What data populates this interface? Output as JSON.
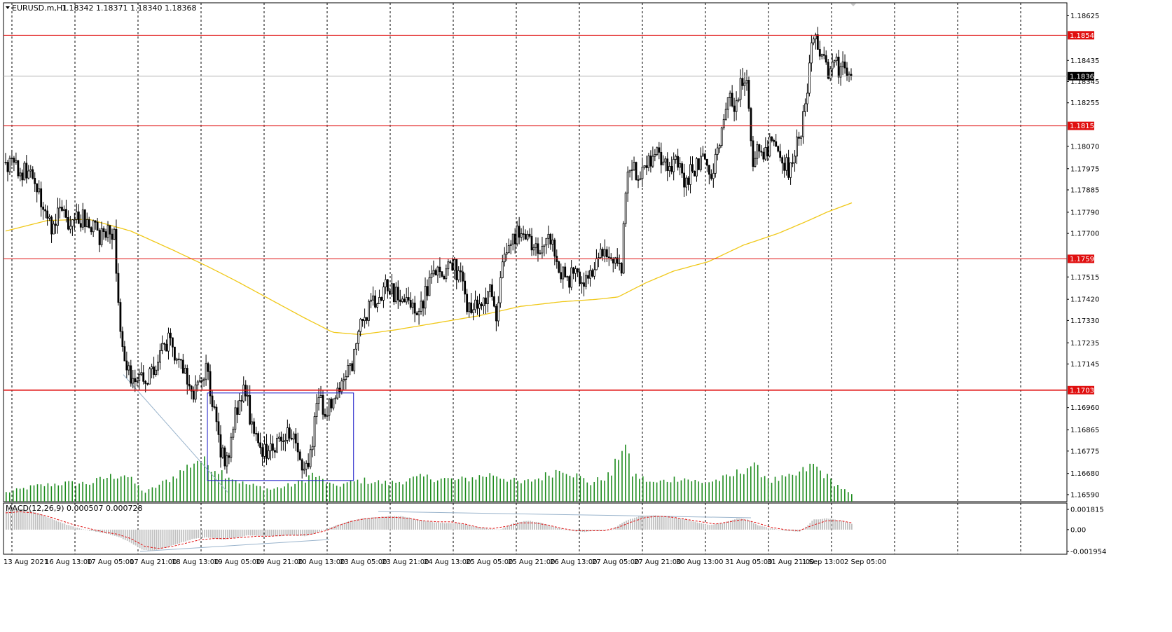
{
  "window": {
    "title": "EURUSD.m,H1",
    "ohlc": "1.18342 1.18371 1.18340 1.18368"
  },
  "indicators": {
    "macd_label": "MACD(12,26,9) 0.000507 0.000728"
  },
  "colors": {
    "background": "#ffffff",
    "candle": "#000000",
    "volume": "#1e8c1e",
    "ma": "#f0c818",
    "level": "#e01010",
    "box": "#2020c8",
    "grid": "#000000",
    "macd_hist": "#c0c0c0",
    "macd_signal": "#e01010",
    "trendline": "#9ab4cc"
  },
  "chart_data": [
    {
      "type": "candlestick",
      "title": "EURUSD.m,H1",
      "symbol": "EURUSD.m",
      "timeframe": "H1",
      "price_axis_ticks": [
        "1.18625",
        "1.18435",
        "1.18345",
        "1.18255",
        "1.18070",
        "1.17975",
        "1.17885",
        "1.17790",
        "1.17700",
        "1.17515",
        "1.17420",
        "1.17330",
        "1.17235",
        "1.17145",
        "1.16960",
        "1.16865",
        "1.16775",
        "1.16680",
        "1.16590"
      ],
      "price_axis_ticks_values": [
        1.18625,
        1.18435,
        1.18345,
        1.18255,
        1.1807,
        1.17975,
        1.17885,
        1.1779,
        1.177,
        1.17515,
        1.1742,
        1.1733,
        1.17235,
        1.17145,
        1.1696,
        1.16865,
        1.16775,
        1.1668,
        1.1659
      ],
      "time_axis_ticks": [
        "13 Aug 2021",
        "16 Aug 13:00",
        "17 Aug 05:00",
        "17 Aug 21:00",
        "18 Aug 13:00",
        "19 Aug 05:00",
        "19 Aug 21:00",
        "20 Aug 13:00",
        "23 Aug 05:00",
        "23 Aug 21:00",
        "24 Aug 13:00",
        "25 Aug 05:00",
        "25 Aug 21:00",
        "26 Aug 13:00",
        "27 Aug 05:00",
        "27 Aug 21:00",
        "30 Aug 13:00",
        "31 Aug 05:00",
        "31 Aug 21:00",
        "1 Sep 13:00",
        "2 Sep 05:00"
      ],
      "ylim": [
        1.1656,
        1.1868
      ],
      "horizontal_levels": [
        {
          "label": "1.18542",
          "value": 1.18542
        },
        {
          "label": "1.18157",
          "value": 1.18157
        },
        {
          "label": "1.17592",
          "value": 1.17592
        },
        {
          "label": "1.17034",
          "value": 1.17034
        }
      ],
      "current_price": {
        "label": "1.18368",
        "value": 1.18368
      },
      "price_path": [
        [
          0,
          1.18
        ],
        [
          15,
          1.1798
        ],
        [
          35,
          1.1795
        ],
        [
          50,
          1.1785
        ],
        [
          58,
          1.1777
        ],
        [
          68,
          1.1773
        ],
        [
          75,
          1.178
        ],
        [
          90,
          1.1776
        ],
        [
          110,
          1.1777
        ],
        [
          122,
          1.1774
        ],
        [
          136,
          1.1768
        ],
        [
          148,
          1.1775
        ],
        [
          156,
          1.1769
        ],
        [
          162,
          1.1742
        ],
        [
          168,
          1.1722
        ],
        [
          172,
          1.1712
        ],
        [
          185,
          1.1708
        ],
        [
          200,
          1.1706
        ],
        [
          212,
          1.1712
        ],
        [
          222,
          1.1718
        ],
        [
          235,
          1.1724
        ],
        [
          245,
          1.1718
        ],
        [
          258,
          1.1714
        ],
        [
          268,
          1.1698
        ],
        [
          276,
          1.1706
        ],
        [
          288,
          1.1712
        ],
        [
          296,
          1.1702
        ],
        [
          302,
          1.1688
        ],
        [
          310,
          1.1678
        ],
        [
          318,
          1.1672
        ],
        [
          326,
          1.1686
        ],
        [
          334,
          1.1698
        ],
        [
          342,
          1.1702
        ],
        [
          350,
          1.1695
        ],
        [
          358,
          1.1682
        ],
        [
          368,
          1.1676
        ],
        [
          378,
          1.1678
        ],
        [
          390,
          1.1682
        ],
        [
          400,
          1.1686
        ],
        [
          410,
          1.1684
        ],
        [
          418,
          1.1678
        ],
        [
          428,
          1.1672
        ],
        [
          435,
          1.167
        ],
        [
          442,
          1.1686
        ],
        [
          450,
          1.17
        ],
        [
          460,
          1.1696
        ],
        [
          470,
          1.1697
        ],
        [
          480,
          1.1705
        ],
        [
          490,
          1.1713
        ],
        [
          500,
          1.1716
        ],
        [
          510,
          1.173
        ],
        [
          520,
          1.1737
        ],
        [
          535,
          1.1745
        ],
        [
          550,
          1.1748
        ],
        [
          565,
          1.1742
        ],
        [
          580,
          1.1741
        ],
        [
          595,
          1.1737
        ],
        [
          605,
          1.1745
        ],
        [
          615,
          1.1755
        ],
        [
          625,
          1.1752
        ],
        [
          640,
          1.1757
        ],
        [
          650,
          1.1754
        ],
        [
          660,
          1.1742
        ],
        [
          672,
          1.1737
        ],
        [
          684,
          1.174
        ],
        [
          695,
          1.1745
        ],
        [
          705,
          1.1737
        ],
        [
          715,
          1.1758
        ],
        [
          728,
          1.177
        ],
        [
          740,
          1.177
        ],
        [
          752,
          1.1765
        ],
        [
          765,
          1.1762
        ],
        [
          778,
          1.177
        ],
        [
          788,
          1.1762
        ],
        [
          798,
          1.1753
        ],
        [
          810,
          1.1751
        ],
        [
          822,
          1.1752
        ],
        [
          836,
          1.1748
        ],
        [
          850,
          1.1758
        ],
        [
          860,
          1.1762
        ],
        [
          870,
          1.176
        ],
        [
          880,
          1.1753
        ],
        [
          886,
          1.1755
        ],
        [
          890,
          1.1785
        ],
        [
          898,
          1.18
        ],
        [
          908,
          1.1796
        ],
        [
          920,
          1.1798
        ],
        [
          932,
          1.1806
        ],
        [
          945,
          1.1802
        ],
        [
          958,
          1.18
        ],
        [
          970,
          1.1797
        ],
        [
          978,
          1.1792
        ],
        [
          988,
          1.1798
        ],
        [
          1000,
          1.1801
        ],
        [
          1012,
          1.1796
        ],
        [
          1020,
          1.1802
        ],
        [
          1028,
          1.1815
        ],
        [
          1036,
          1.1824
        ],
        [
          1044,
          1.1826
        ],
        [
          1052,
          1.1826
        ],
        [
          1060,
          1.1838
        ],
        [
          1066,
          1.1832
        ],
        [
          1072,
          1.18
        ],
        [
          1080,
          1.1806
        ],
        [
          1090,
          1.1805
        ],
        [
          1100,
          1.1807
        ],
        [
          1110,
          1.1802
        ],
        [
          1122,
          1.1799
        ],
        [
          1130,
          1.1797
        ],
        [
          1138,
          1.1809
        ],
        [
          1145,
          1.1818
        ],
        [
          1150,
          1.1825
        ],
        [
          1155,
          1.184
        ],
        [
          1160,
          1.1854
        ],
        [
          1165,
          1.185
        ],
        [
          1170,
          1.1844
        ],
        [
          1180,
          1.184
        ],
        [
          1190,
          1.1841
        ],
        [
          1200,
          1.184
        ],
        [
          1208,
          1.1838
        ],
        [
          1216,
          1.1835
        ]
      ],
      "ma_path": [
        [
          0,
          1.1771
        ],
        [
          60,
          1.17755
        ],
        [
          120,
          1.1776
        ],
        [
          180,
          1.1771
        ],
        [
          240,
          1.1763
        ],
        [
          290,
          1.1756
        ],
        [
          330,
          1.175
        ],
        [
          380,
          1.1742
        ],
        [
          430,
          1.1734
        ],
        [
          470,
          1.1728
        ],
        [
          510,
          1.1727
        ],
        [
          560,
          1.1729
        ],
        [
          620,
          1.1732
        ],
        [
          680,
          1.1735
        ],
        [
          740,
          1.1739
        ],
        [
          800,
          1.1741
        ],
        [
          850,
          1.1742
        ],
        [
          880,
          1.1743
        ],
        [
          920,
          1.1749
        ],
        [
          960,
          1.1754
        ],
        [
          1010,
          1.1758
        ],
        [
          1060,
          1.1765
        ],
        [
          1110,
          1.177
        ],
        [
          1150,
          1.1775
        ],
        [
          1180,
          1.1779
        ],
        [
          1216,
          1.1783
        ]
      ],
      "volume_profile": [
        [
          0,
          0.15
        ],
        [
          40,
          0.25
        ],
        [
          80,
          0.3
        ],
        [
          120,
          0.3
        ],
        [
          145,
          0.4
        ],
        [
          170,
          0.45
        ],
        [
          200,
          0.15
        ],
        [
          240,
          0.4
        ],
        [
          276,
          0.7
        ],
        [
          300,
          0.55
        ],
        [
          340,
          0.3
        ],
        [
          380,
          0.2
        ],
        [
          420,
          0.3
        ],
        [
          440,
          0.45
        ],
        [
          470,
          0.25
        ],
        [
          510,
          0.35
        ],
        [
          550,
          0.3
        ],
        [
          600,
          0.4
        ],
        [
          650,
          0.35
        ],
        [
          700,
          0.45
        ],
        [
          740,
          0.3
        ],
        [
          770,
          0.4
        ],
        [
          800,
          0.55
        ],
        [
          840,
          0.3
        ],
        [
          870,
          0.45
        ],
        [
          888,
          1.0
        ],
        [
          900,
          0.45
        ],
        [
          930,
          0.3
        ],
        [
          970,
          0.4
        ],
        [
          1000,
          0.3
        ],
        [
          1040,
          0.4
        ],
        [
          1070,
          0.6
        ],
        [
          1100,
          0.35
        ],
        [
          1130,
          0.4
        ],
        [
          1160,
          0.6
        ],
        [
          1190,
          0.3
        ],
        [
          1216,
          0.1
        ]
      ],
      "box": {
        "x_start": 290,
        "x_end": 500,
        "price_high": 1.17022,
        "price_low": 1.1665
      }
    },
    {
      "type": "bar",
      "title": "MACD(12,26,9) 0.000507 0.000728",
      "ylim": [
        -0.001954,
        0.001815
      ],
      "axis_ticks": [
        "0.001815",
        "0.00",
        "-0.001954"
      ],
      "axis_ticks_values": [
        0.001815,
        0.0,
        -0.001954
      ],
      "macd_hist_path": [
        [
          0,
          0.0017
        ],
        [
          20,
          0.0019
        ],
        [
          40,
          0.0016
        ],
        [
          60,
          0.0011
        ],
        [
          80,
          0.0006
        ],
        [
          100,
          0.0002
        ],
        [
          120,
          -0.0001
        ],
        [
          140,
          -0.0003
        ],
        [
          160,
          -0.0006
        ],
        [
          180,
          -0.0012
        ],
        [
          195,
          -0.0018
        ],
        [
          210,
          -0.0019
        ],
        [
          230,
          -0.0016
        ],
        [
          250,
          -0.0012
        ],
        [
          270,
          -0.0008
        ],
        [
          290,
          -0.0007
        ],
        [
          310,
          -0.0009
        ],
        [
          330,
          -0.0007
        ],
        [
          350,
          -0.0005
        ],
        [
          370,
          -0.0006
        ],
        [
          390,
          -0.0006
        ],
        [
          410,
          -0.0005
        ],
        [
          430,
          -0.0006
        ],
        [
          450,
          -0.0002
        ],
        [
          470,
          0.0003
        ],
        [
          490,
          0.0007
        ],
        [
          510,
          0.001
        ],
        [
          530,
          0.0011
        ],
        [
          550,
          0.0012
        ],
        [
          570,
          0.0012
        ],
        [
          590,
          0.0009
        ],
        [
          610,
          0.0007
        ],
        [
          630,
          0.0006
        ],
        [
          650,
          0.0006
        ],
        [
          670,
          0.0003
        ],
        [
          690,
          0.0001
        ],
        [
          710,
          0.0
        ],
        [
          730,
          0.0006
        ],
        [
          750,
          0.0008
        ],
        [
          770,
          0.0006
        ],
        [
          790,
          0.0002
        ],
        [
          810,
          -0.0001
        ],
        [
          830,
          -0.0002
        ],
        [
          850,
          -0.0001
        ],
        [
          870,
          0.0
        ],
        [
          890,
          0.0008
        ],
        [
          910,
          0.0012
        ],
        [
          930,
          0.0013
        ],
        [
          950,
          0.0012
        ],
        [
          970,
          0.001
        ],
        [
          990,
          0.0007
        ],
        [
          1010,
          0.0004
        ],
        [
          1030,
          0.0006
        ],
        [
          1050,
          0.001
        ],
        [
          1065,
          0.0009
        ],
        [
          1080,
          0.0004
        ],
        [
          1100,
          0.0001
        ],
        [
          1120,
          -0.0001
        ],
        [
          1140,
          -0.0002
        ],
        [
          1150,
          0.0003
        ],
        [
          1160,
          0.0009
        ],
        [
          1180,
          0.001
        ],
        [
          1200,
          0.0008
        ],
        [
          1216,
          0.0005
        ]
      ],
      "macd_signal_path": [
        [
          0,
          0.0015
        ],
        [
          20,
          0.0016
        ],
        [
          40,
          0.0015
        ],
        [
          60,
          0.0012
        ],
        [
          80,
          0.0008
        ],
        [
          100,
          0.0004
        ],
        [
          120,
          0.0001
        ],
        [
          140,
          -0.0002
        ],
        [
          160,
          -0.0004
        ],
        [
          180,
          -0.0008
        ],
        [
          200,
          -0.0015
        ],
        [
          220,
          -0.0017
        ],
        [
          240,
          -0.0015
        ],
        [
          260,
          -0.0012
        ],
        [
          280,
          -0.0009
        ],
        [
          300,
          -0.0008
        ],
        [
          320,
          -0.0008
        ],
        [
          340,
          -0.0007
        ],
        [
          360,
          -0.0006
        ],
        [
          380,
          -0.0006
        ],
        [
          400,
          -0.0005
        ],
        [
          420,
          -0.0005
        ],
        [
          440,
          -0.0004
        ],
        [
          460,
          -0.0001
        ],
        [
          480,
          0.0004
        ],
        [
          500,
          0.0008
        ],
        [
          520,
          0.001
        ],
        [
          540,
          0.0011
        ],
        [
          560,
          0.0011
        ],
        [
          580,
          0.001
        ],
        [
          600,
          0.0008
        ],
        [
          620,
          0.0007
        ],
        [
          640,
          0.0007
        ],
        [
          660,
          0.0005
        ],
        [
          680,
          0.0002
        ],
        [
          700,
          0.0001
        ],
        [
          720,
          0.0003
        ],
        [
          740,
          0.0006
        ],
        [
          760,
          0.0006
        ],
        [
          780,
          0.0004
        ],
        [
          800,
          0.0001
        ],
        [
          820,
          -0.0001
        ],
        [
          840,
          -0.0001
        ],
        [
          860,
          -0.0001
        ],
        [
          880,
          0.0002
        ],
        [
          900,
          0.0007
        ],
        [
          920,
          0.0011
        ],
        [
          940,
          0.0012
        ],
        [
          960,
          0.0011
        ],
        [
          980,
          0.0009
        ],
        [
          1000,
          0.0007
        ],
        [
          1020,
          0.0005
        ],
        [
          1040,
          0.0007
        ],
        [
          1060,
          0.0009
        ],
        [
          1080,
          0.0006
        ],
        [
          1100,
          0.0002
        ],
        [
          1120,
          0.0
        ],
        [
          1140,
          -0.0001
        ],
        [
          1160,
          0.0004
        ],
        [
          1180,
          0.0008
        ],
        [
          1200,
          0.0008
        ],
        [
          1216,
          0.0006
        ]
      ]
    }
  ]
}
